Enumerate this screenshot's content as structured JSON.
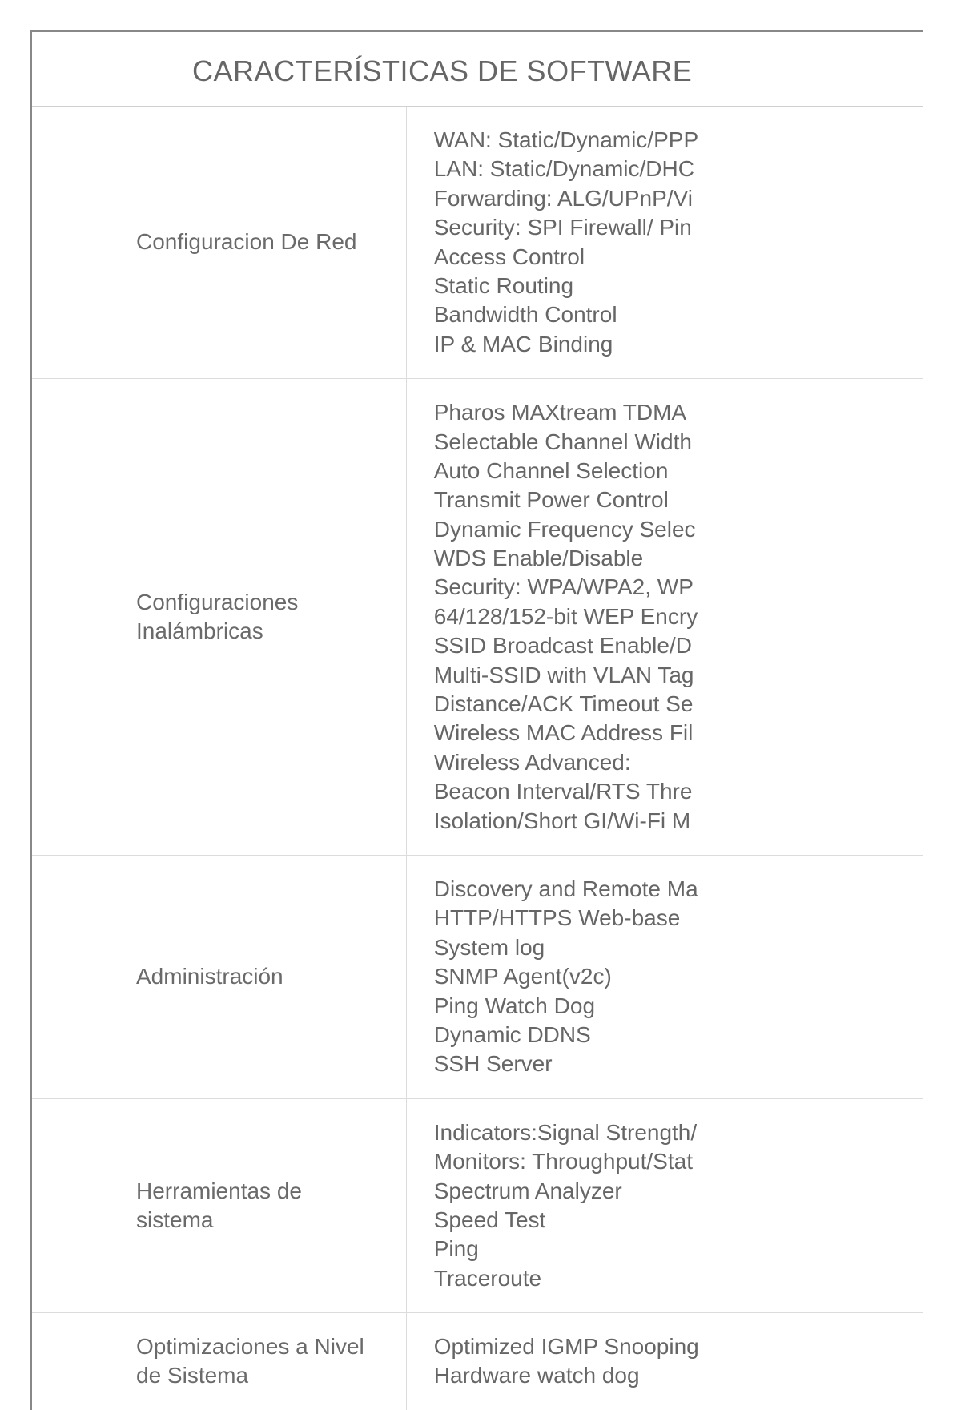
{
  "table": {
    "title": "CARACTERÍSTICAS DE SOFTWARE",
    "title_color": "#666666",
    "title_fontsize": 36,
    "label_fontsize": 28,
    "value_fontsize": 28,
    "text_color": "#666666",
    "border_color_outer": "#888888",
    "border_color_inner": "#dcdcdc",
    "background_color": "#ffffff",
    "label_column_width_pct": 42,
    "value_column_width_pct": 58,
    "rows": [
      {
        "label": "Configuracion De Red",
        "value": "WAN: Static/Dynamic/PPP\nLAN: Static/Dynamic/DHC\nForwarding: ALG/UPnP/Vi\nSecurity: SPI Firewall/ Pin\nAccess Control\nStatic Routing\nBandwidth Control\nIP & MAC Binding"
      },
      {
        "label": "Configuraciones Inalámbricas",
        "value": "Pharos MAXtream TDMA\nSelectable Channel Width\nAuto Channel Selection\nTransmit Power Control\nDynamic Frequency Selec\nWDS Enable/Disable\nSecurity: WPA/WPA2, WP\n64/128/152-bit WEP Encry\nSSID Broadcast Enable/D\nMulti-SSID with VLAN Tag\nDistance/ACK Timeout Se\nWireless MAC Address Fil\nWireless Advanced:\nBeacon Interval/RTS Thre\nIsolation/Short GI/Wi-Fi M"
      },
      {
        "label": "Administración",
        "value": "Discovery and Remote Ma\nHTTP/HTTPS Web-base\nSystem log\nSNMP Agent(v2c)\nPing Watch Dog\nDynamic DDNS\nSSH Server"
      },
      {
        "label": "Herramientas de sistema",
        "value": "Indicators:Signal Strength/\nMonitors: Throughput/Stat\nSpectrum Analyzer\nSpeed Test\nPing\nTraceroute"
      },
      {
        "label": "Optimizaciones a Nivel de Sistema",
        "value": "Optimized IGMP Snooping\nHardware watch dog"
      }
    ]
  }
}
